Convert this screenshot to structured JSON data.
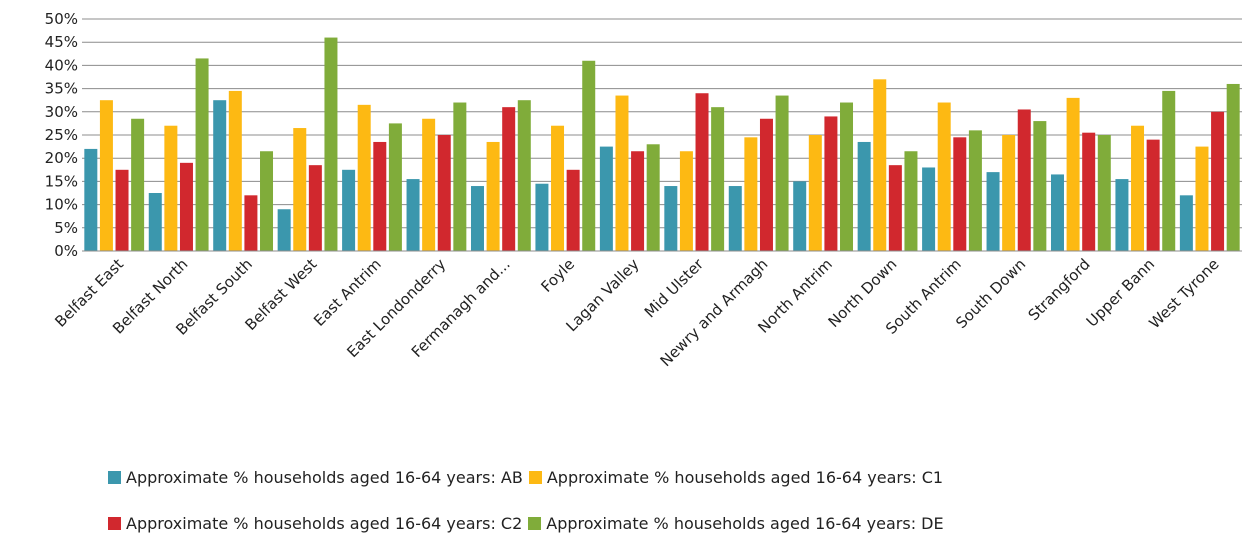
{
  "chart_data": {
    "type": "bar",
    "title": "",
    "xlabel": "",
    "ylabel": "",
    "ylim": [
      0,
      50
    ],
    "y_ticks": [
      "0%",
      "5%",
      "10%",
      "15%",
      "20%",
      "25%",
      "30%",
      "35%",
      "40%",
      "45%",
      "50%"
    ],
    "grid": true,
    "legend_position": "bottom",
    "categories": [
      "Belfast East",
      "Belfast North",
      "Belfast South",
      "Belfast West",
      "East Antrim",
      "East Londonderry",
      "Fermanagh and...",
      "Foyle",
      "Lagan Valley",
      "Mid Ulster",
      "Newry and Armagh",
      "North Antrim",
      "North Down",
      "South Antrim",
      "South Down",
      "Strangford",
      "Upper Bann",
      "West Tyrone"
    ],
    "series": [
      {
        "name": "Approximate % households aged 16-64 years: AB",
        "color": "#3b97ad",
        "values": [
          22,
          12.5,
          32.5,
          9,
          17.5,
          15.5,
          14,
          14.5,
          22.5,
          14,
          14,
          15,
          23.5,
          18,
          17,
          16.5,
          15.5,
          12
        ]
      },
      {
        "name": "Approximate % households aged 16-64 years: C1",
        "color": "#fdb913",
        "values": [
          32.5,
          27,
          34.5,
          26.5,
          31.5,
          28.5,
          23.5,
          27,
          33.5,
          21.5,
          24.5,
          25,
          37,
          32,
          25,
          33,
          27,
          22.5
        ]
      },
      {
        "name": "Approximate % households aged 16-64 years: C2",
        "color": "#d1282e",
        "values": [
          17.5,
          19,
          12,
          18.5,
          23.5,
          25,
          31,
          17.5,
          21.5,
          34,
          28.5,
          29,
          18.5,
          24.5,
          30.5,
          25.5,
          24,
          30
        ]
      },
      {
        "name": "Approximate % households aged 16-64 years: DE",
        "color": "#80ac3a",
        "values": [
          28.5,
          41.5,
          21.5,
          46,
          27.5,
          32,
          32.5,
          41,
          23,
          31,
          33.5,
          32,
          21.5,
          26,
          28,
          25,
          34.5,
          36
        ]
      }
    ]
  }
}
